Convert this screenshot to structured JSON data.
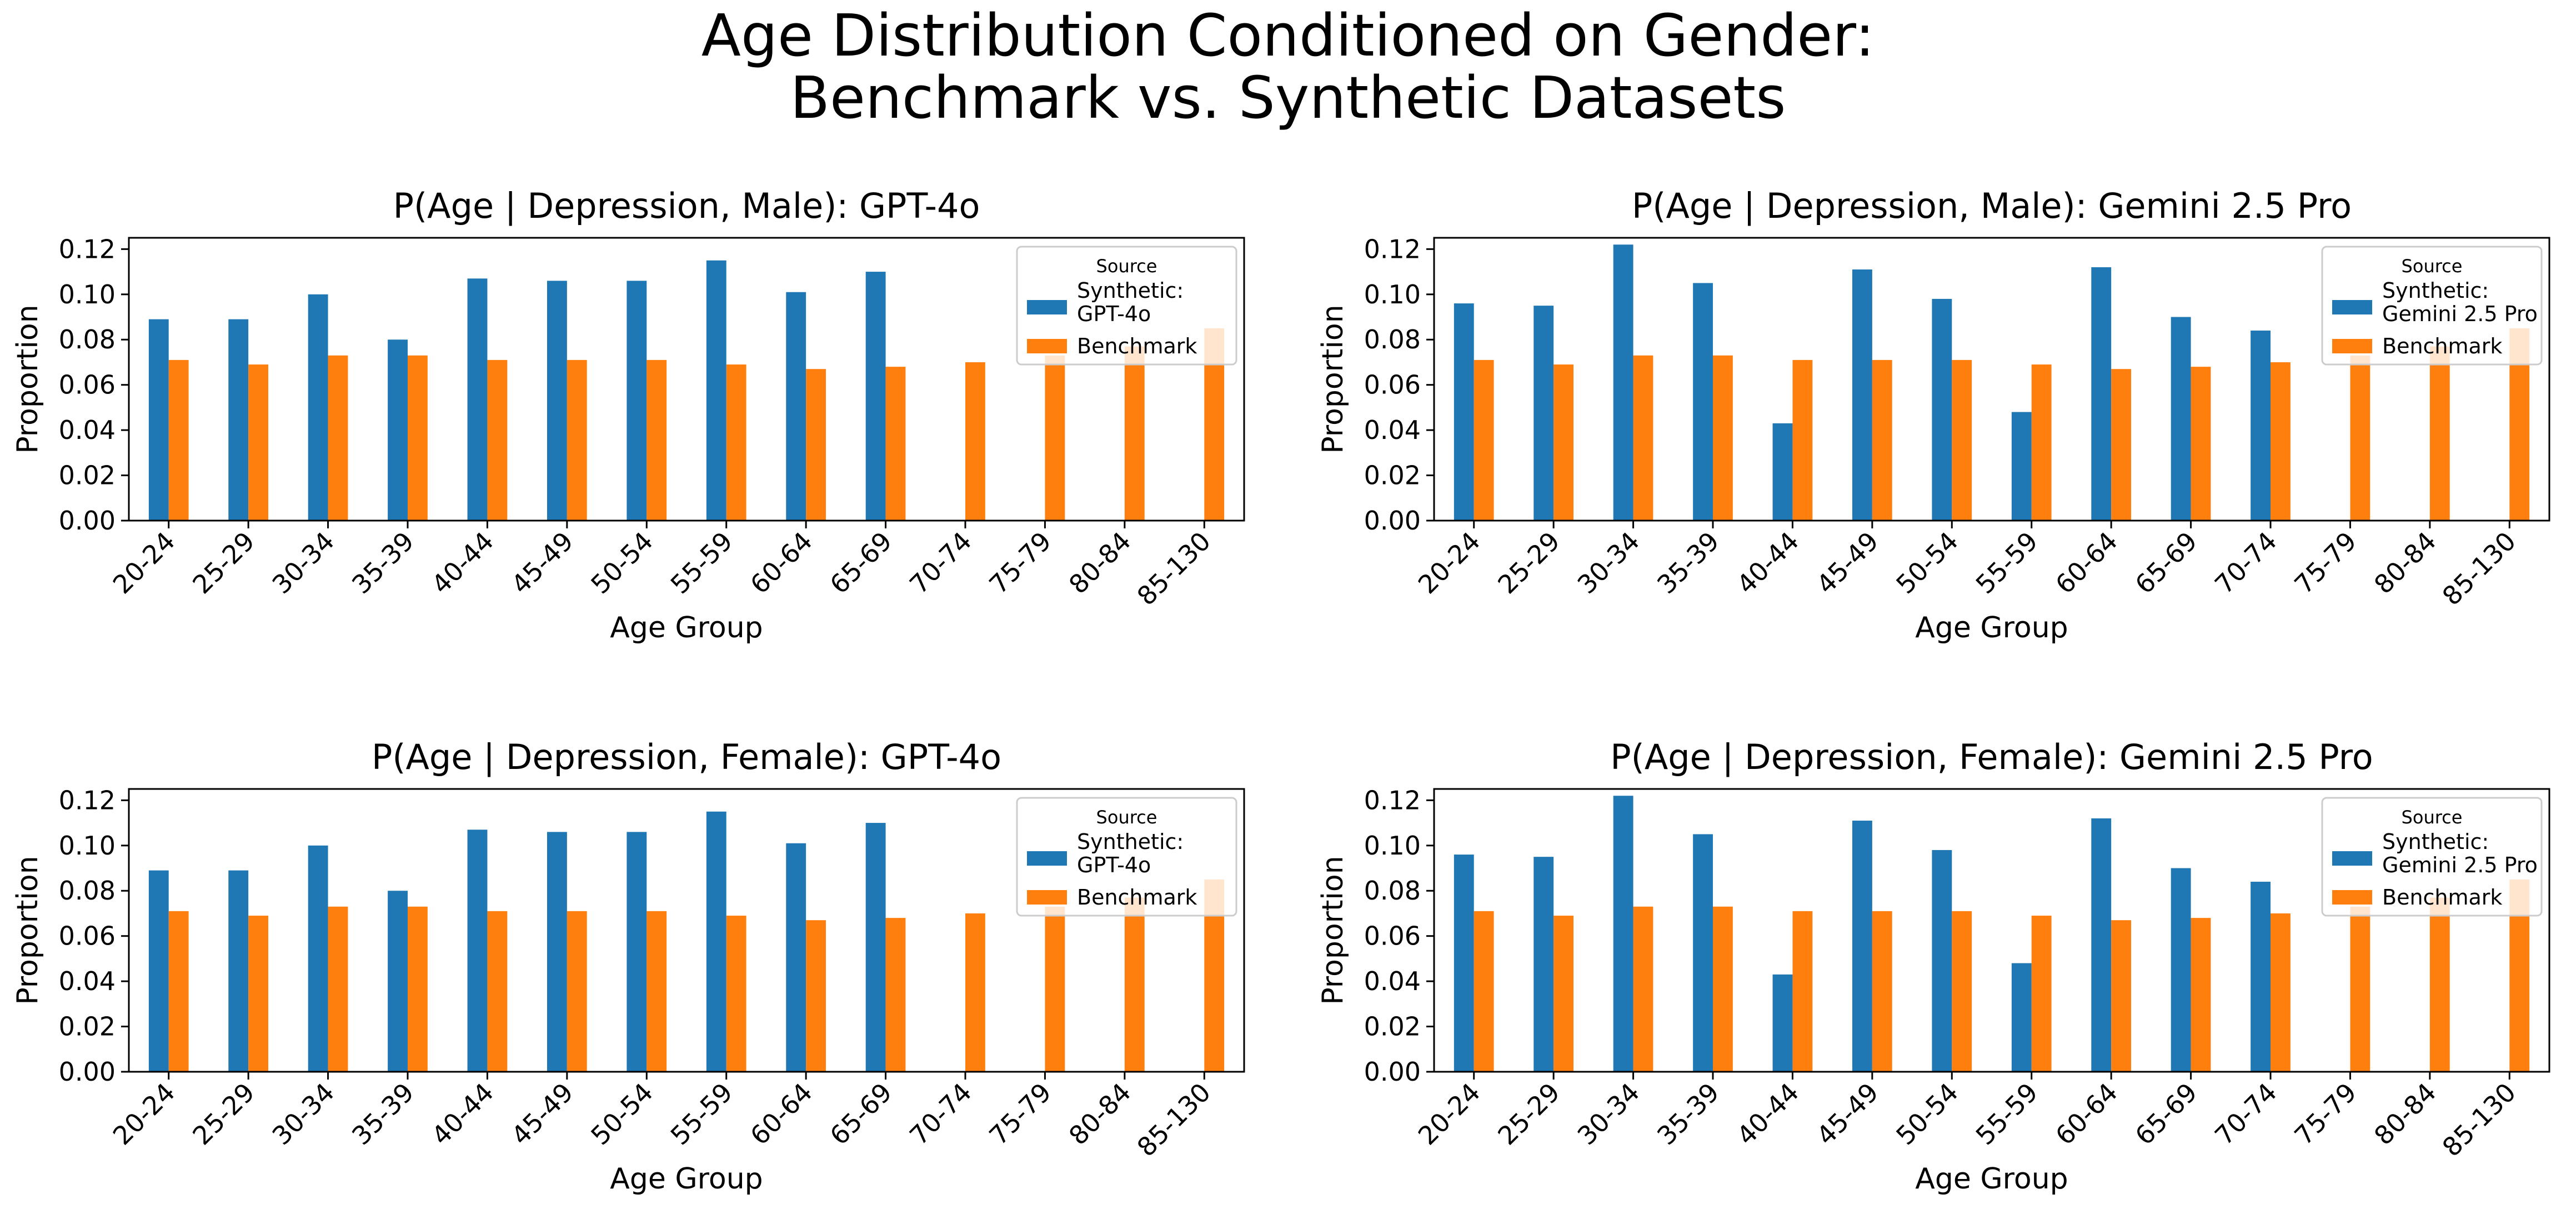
{
  "figure": {
    "title_line1": "Age Distribution Conditioned on Gender:",
    "title_line2": "Benchmark vs. Synthetic Datasets"
  },
  "colors": {
    "synthetic": "#1f77b4",
    "benchmark": "#ff7f0e"
  },
  "chart_data": [
    {
      "type": "bar",
      "title": "P(Age | Depression, Male): GPT-4o",
      "xlabel": "Age Group",
      "ylabel": "Proportion",
      "ylim": [
        0,
        0.125
      ],
      "yticks": [
        "0.00",
        "0.02",
        "0.04",
        "0.06",
        "0.08",
        "0.10",
        "0.12"
      ],
      "categories": [
        "20-24",
        "25-29",
        "30-34",
        "35-39",
        "40-44",
        "45-49",
        "50-54",
        "55-59",
        "60-64",
        "65-69",
        "70-74",
        "75-79",
        "80-84",
        "85-130"
      ],
      "legend": {
        "title": "Source",
        "position": "top-right"
      },
      "series": [
        {
          "name": "Synthetic:\nGPT-4o",
          "legend_lines": [
            "Synthetic:",
            "GPT-4o"
          ],
          "values": [
            0.089,
            0.089,
            0.1,
            0.08,
            0.107,
            0.106,
            0.106,
            0.115,
            0.101,
            0.11,
            0,
            0,
            0,
            0
          ]
        },
        {
          "name": "Benchmark",
          "legend_lines": [
            "Benchmark"
          ],
          "values": [
            0.071,
            0.069,
            0.073,
            0.073,
            0.071,
            0.071,
            0.071,
            0.069,
            0.067,
            0.068,
            0.07,
            0.073,
            0.077,
            0.085
          ]
        }
      ]
    },
    {
      "type": "bar",
      "title": "P(Age | Depression, Male): Gemini 2.5 Pro",
      "xlabel": "Age Group",
      "ylabel": "Proportion",
      "ylim": [
        0,
        0.125
      ],
      "yticks": [
        "0.00",
        "0.02",
        "0.04",
        "0.06",
        "0.08",
        "0.10",
        "0.12"
      ],
      "categories": [
        "20-24",
        "25-29",
        "30-34",
        "35-39",
        "40-44",
        "45-49",
        "50-54",
        "55-59",
        "60-64",
        "65-69",
        "70-74",
        "75-79",
        "80-84",
        "85-130"
      ],
      "legend": {
        "title": "Source",
        "position": "top-right"
      },
      "series": [
        {
          "name": "Synthetic:\nGemini 2.5 Pro",
          "legend_lines": [
            "Synthetic:",
            "Gemini 2.5 Pro"
          ],
          "values": [
            0.096,
            0.095,
            0.122,
            0.105,
            0.043,
            0.111,
            0.098,
            0.048,
            0.112,
            0.09,
            0.084,
            0,
            0,
            0
          ]
        },
        {
          "name": "Benchmark",
          "legend_lines": [
            "Benchmark"
          ],
          "values": [
            0.071,
            0.069,
            0.073,
            0.073,
            0.071,
            0.071,
            0.071,
            0.069,
            0.067,
            0.068,
            0.07,
            0.073,
            0.077,
            0.085
          ]
        }
      ]
    },
    {
      "type": "bar",
      "title": "P(Age | Depression, Female): GPT-4o",
      "xlabel": "Age Group",
      "ylabel": "Proportion",
      "ylim": [
        0,
        0.125
      ],
      "yticks": [
        "0.00",
        "0.02",
        "0.04",
        "0.06",
        "0.08",
        "0.10",
        "0.12"
      ],
      "categories": [
        "20-24",
        "25-29",
        "30-34",
        "35-39",
        "40-44",
        "45-49",
        "50-54",
        "55-59",
        "60-64",
        "65-69",
        "70-74",
        "75-79",
        "80-84",
        "85-130"
      ],
      "legend": {
        "title": "Source",
        "position": "top-right"
      },
      "series": [
        {
          "name": "Synthetic:\nGPT-4o",
          "legend_lines": [
            "Synthetic:",
            "GPT-4o"
          ],
          "values": [
            0.089,
            0.089,
            0.1,
            0.08,
            0.107,
            0.106,
            0.106,
            0.115,
            0.101,
            0.11,
            0,
            0,
            0,
            0
          ]
        },
        {
          "name": "Benchmark",
          "legend_lines": [
            "Benchmark"
          ],
          "values": [
            0.071,
            0.069,
            0.073,
            0.073,
            0.071,
            0.071,
            0.071,
            0.069,
            0.067,
            0.068,
            0.07,
            0.073,
            0.077,
            0.085
          ]
        }
      ]
    },
    {
      "type": "bar",
      "title": "P(Age | Depression, Female): Gemini 2.5 Pro",
      "xlabel": "Age Group",
      "ylabel": "Proportion",
      "ylim": [
        0,
        0.125
      ],
      "yticks": [
        "0.00",
        "0.02",
        "0.04",
        "0.06",
        "0.08",
        "0.10",
        "0.12"
      ],
      "categories": [
        "20-24",
        "25-29",
        "30-34",
        "35-39",
        "40-44",
        "45-49",
        "50-54",
        "55-59",
        "60-64",
        "65-69",
        "70-74",
        "75-79",
        "80-84",
        "85-130"
      ],
      "legend": {
        "title": "Source",
        "position": "top-right"
      },
      "series": [
        {
          "name": "Synthetic:\nGemini 2.5 Pro",
          "legend_lines": [
            "Synthetic:",
            "Gemini 2.5 Pro"
          ],
          "values": [
            0.096,
            0.095,
            0.122,
            0.105,
            0.043,
            0.111,
            0.098,
            0.048,
            0.112,
            0.09,
            0.084,
            0,
            0,
            0
          ]
        },
        {
          "name": "Benchmark",
          "legend_lines": [
            "Benchmark"
          ],
          "values": [
            0.071,
            0.069,
            0.073,
            0.073,
            0.071,
            0.071,
            0.071,
            0.069,
            0.067,
            0.068,
            0.07,
            0.073,
            0.077,
            0.085
          ]
        }
      ]
    }
  ]
}
